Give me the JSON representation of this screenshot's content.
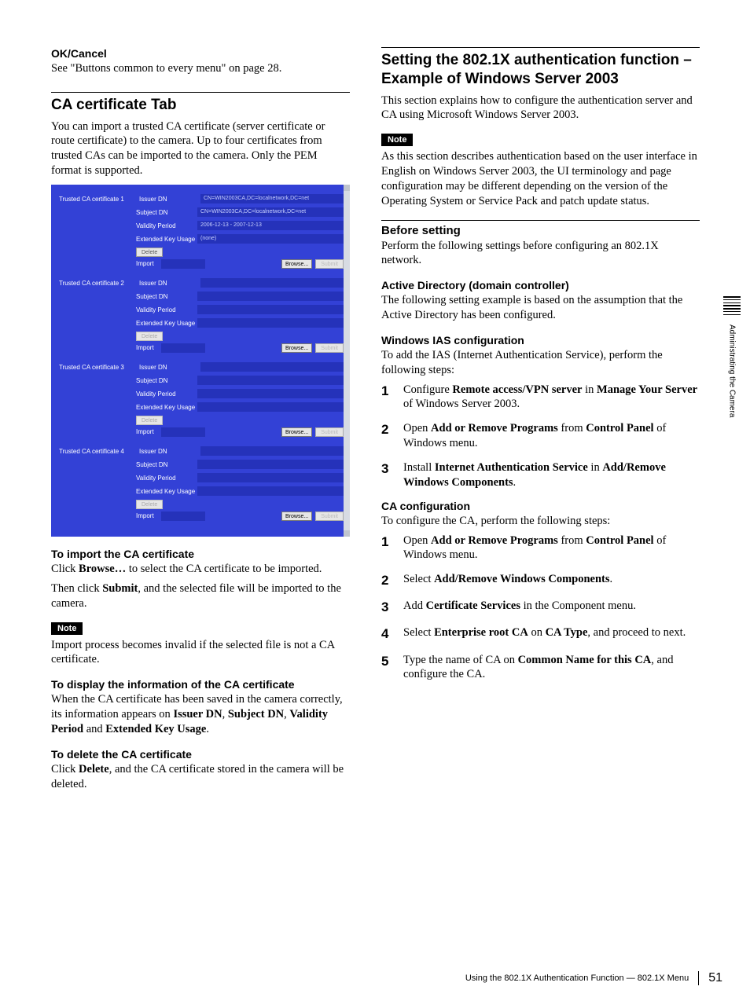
{
  "side": {
    "label": "Administrating the Camera"
  },
  "footer": {
    "text": "Using the 802.1X Authentication Function — 802.1X Menu",
    "page": "51"
  },
  "left": {
    "okcancel_h": "OK/Cancel",
    "okcancel_p": "See \"Buttons common to every menu\" on page 28.",
    "h2": "CA certificate Tab",
    "intro": "You can import a trusted CA certificate (server certificate or route certificate) to the camera. Up to four certificates from trusted CAs can be imported to the camera. Only the PEM format is supported.",
    "import_h": "To import the CA certificate",
    "import_p1a": "Click ",
    "import_p1b": "Browse…",
    "import_p1c": " to select the CA certificate to be imported.",
    "import_p2a": "Then click ",
    "import_p2b": "Submit",
    "import_p2c": ", and the selected file will be imported to the camera.",
    "note1": "Note",
    "note1_p": "Import process becomes invalid if the selected file is not a CA certificate.",
    "display_h": "To display the information of the CA certificate",
    "display_p1": "When the CA certificate has been saved in the camera correctly, its information appears on ",
    "display_b1": "Issuer DN",
    "display_c1": ", ",
    "display_b2": "Subject DN",
    "display_c2": ", ",
    "display_b3": "Validity Period",
    "display_c3": " and ",
    "display_b4": "Extended Key Usage",
    "display_c4": ".",
    "delete_h": "To delete the CA certificate",
    "delete_p1a": "Click ",
    "delete_p1b": "Delete",
    "delete_p1c": ", and the CA certificate stored in the camera will be deleted."
  },
  "shot": {
    "rows": [
      "Issuer DN",
      "Subject DN",
      "Validity Period",
      "Extended Key Usage"
    ],
    "certs": [
      {
        "title": "Trusted CA certificate 1",
        "vals": [
          "CN=WIN2003CA,DC=localnetwork,DC=net",
          "CN=WIN2003CA,DC=localnetwork,DC=net",
          "2006-12-13 - 2007-12-13",
          "(none)"
        ],
        "delete_enabled": true
      },
      {
        "title": "Trusted CA certificate 2",
        "vals": [
          "",
          "",
          "",
          ""
        ],
        "delete_enabled": false
      },
      {
        "title": "Trusted CA certificate 3",
        "vals": [
          "",
          "",
          "",
          ""
        ],
        "delete_enabled": false
      },
      {
        "title": "Trusted CA certificate 4",
        "vals": [
          "",
          "",
          "",
          ""
        ],
        "delete_enabled": false
      }
    ],
    "delete_label": "Delete",
    "import_label": "Import",
    "browse_label": "Browse...",
    "submit_label": "Submit"
  },
  "right": {
    "h2": "Setting the 802.1X authentication function – Example of Windows Server 2003",
    "intro": "This section explains how to configure the authentication server and CA using Microsoft Windows Server 2003.",
    "note": "Note",
    "note_p": "As this section describes authentication based on the user interface in English on Windows Server 2003, the UI terminology and page configuration may be different depending on the version of the Operating System or Service Pack and patch update status.",
    "before_h": "Before setting",
    "before_p": "Perform the following settings before configuring an 802.1X network.",
    "ad_h": "Active Directory (domain controller)",
    "ad_p": "The following setting example is based on the assumption that the Active Directory has been configured.",
    "ias_h": "Windows IAS configuration",
    "ias_p": "To add the IAS (Internet Authentication Service), perform the following steps:",
    "ias_steps": [
      {
        "pre": "Configure ",
        "b1": "Remote access/VPN server",
        "mid": " in ",
        "b2": "Manage Your Server",
        "post": " of Windows Server 2003."
      },
      {
        "pre": "Open ",
        "b1": "Add or Remove Programs",
        "mid": " from ",
        "b2": "Control Panel",
        "post": " of Windows menu."
      },
      {
        "pre": "Install ",
        "b1": "Internet Authentication Service",
        "mid": " in ",
        "b2": "Add/Remove Windows Components",
        "post": "."
      }
    ],
    "ca_h": "CA configuration",
    "ca_p": "To configure the CA, perform the following steps:",
    "ca_steps": [
      {
        "pre": "Open ",
        "b1": "Add or Remove Programs",
        "mid": " from ",
        "b2": "Control Panel",
        "post": " of Windows menu."
      },
      {
        "pre": "Select ",
        "b1": "Add/Remove Windows Components",
        "mid": "",
        "b2": "",
        "post": "."
      },
      {
        "pre": "Add ",
        "b1": "Certificate Services",
        "mid": " in the Component menu.",
        "b2": "",
        "post": ""
      },
      {
        "pre": "Select ",
        "b1": "Enterprise root CA",
        "mid": " on ",
        "b2": "CA Type",
        "post": ", and proceed to next."
      },
      {
        "pre": "Type the name of CA on ",
        "b1": "Common Name for this CA",
        "mid": ", and configure the CA.",
        "b2": "",
        "post": ""
      }
    ]
  }
}
